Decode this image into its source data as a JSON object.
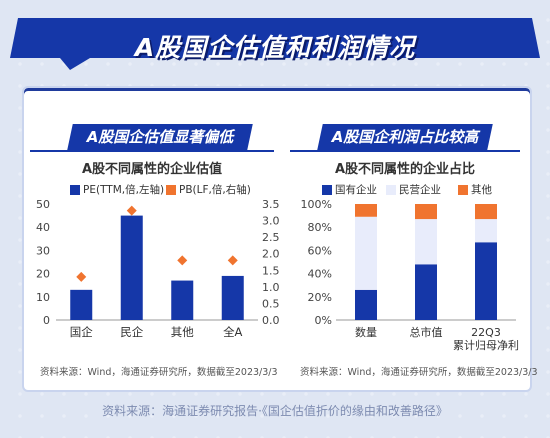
{
  "page": {
    "title": "A股国企估值和利润情况",
    "footer": "资料来源：海通证券研究报告·《国企估值折价的缘由和改善路径》"
  },
  "left": {
    "header": "A股国企估值显著偏低",
    "source": "资料来源：Wind，海通证券研究所，数据截至2023/3/3"
  },
  "right": {
    "header": "A股国企利润占比较高",
    "source": "资料来源：Wind，海通证券研究所，数据截至2023/3/3"
  },
  "colors": {
    "blue": "#1537a8",
    "orange": "#f0742f",
    "light": "#e8ecfb",
    "title_bg": "#1537a8"
  },
  "chart_data": [
    {
      "type": "bar",
      "title": "A股不同属性的企业估值",
      "categories": [
        "国企",
        "民企",
        "其他",
        "全A"
      ],
      "series": [
        {
          "name": "PE(TTM,倍,左轴)",
          "type": "bar",
          "axis": "left",
          "values": [
            13,
            45,
            17,
            19
          ]
        },
        {
          "name": "PB(LF,倍,右轴)",
          "type": "scatter",
          "axis": "right",
          "values": [
            1.3,
            3.3,
            1.8,
            1.8
          ]
        }
      ],
      "ylim_left": [
        0,
        50
      ],
      "yticks_left": [
        "0",
        "10",
        "20",
        "30",
        "40",
        "50"
      ],
      "ylim_right": [
        0,
        3.5
      ],
      "yticks_right": [
        "0.0",
        "0.5",
        "1.0",
        "1.5",
        "2.0",
        "2.5",
        "3.0",
        "3.5"
      ]
    },
    {
      "type": "bar",
      "stacked": true,
      "title": "A股不同属性的企业占比",
      "categories": [
        "数量",
        "总市值",
        "22Q3累计归母净利"
      ],
      "category_lines": [
        [
          "数量"
        ],
        [
          "总市值"
        ],
        [
          "22Q3",
          "累计归母净利"
        ]
      ],
      "series": [
        {
          "name": "国有企业",
          "values": [
            26,
            48,
            67
          ]
        },
        {
          "name": "民营企业",
          "values": [
            63,
            39,
            20
          ]
        },
        {
          "name": "其他",
          "values": [
            11,
            13,
            13
          ]
        }
      ],
      "ylim": [
        0,
        100
      ],
      "yticks": [
        "0%",
        "20%",
        "40%",
        "60%",
        "80%",
        "100%"
      ]
    }
  ]
}
